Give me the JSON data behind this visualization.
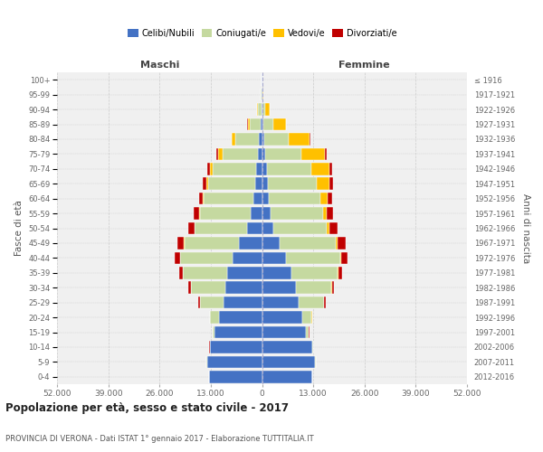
{
  "age_groups": [
    "0-4",
    "5-9",
    "10-14",
    "15-19",
    "20-24",
    "25-29",
    "30-34",
    "35-39",
    "40-44",
    "45-49",
    "50-54",
    "55-59",
    "60-64",
    "65-69",
    "70-74",
    "75-79",
    "80-84",
    "85-89",
    "90-94",
    "95-99",
    "100+"
  ],
  "birth_years": [
    "2012-2016",
    "2007-2011",
    "2002-2006",
    "1997-2001",
    "1992-1996",
    "1987-1991",
    "1982-1986",
    "1977-1981",
    "1972-1976",
    "1967-1971",
    "1962-1966",
    "1957-1961",
    "1952-1956",
    "1947-1951",
    "1942-1946",
    "1937-1941",
    "1932-1936",
    "1927-1931",
    "1922-1926",
    "1917-1921",
    "≤ 1916"
  ],
  "males": {
    "celibi": [
      13500,
      14000,
      13200,
      12000,
      11000,
      9800,
      9200,
      8800,
      7500,
      5800,
      3800,
      2800,
      2200,
      1700,
      1400,
      1100,
      700,
      350,
      200,
      100,
      50
    ],
    "coniugati": [
      20,
      50,
      100,
      500,
      2100,
      6000,
      8800,
      11200,
      13200,
      13800,
      13200,
      13000,
      12500,
      12000,
      11000,
      9000,
      6000,
      2800,
      900,
      200,
      60
    ],
    "vedovi": [
      5,
      10,
      15,
      40,
      80,
      40,
      60,
      80,
      100,
      150,
      200,
      250,
      350,
      500,
      800,
      1100,
      900,
      500,
      200,
      50,
      10
    ],
    "divorziati": [
      5,
      10,
      20,
      50,
      100,
      300,
      550,
      850,
      1300,
      1700,
      1600,
      1200,
      950,
      750,
      650,
      450,
      200,
      80,
      30,
      10,
      5
    ]
  },
  "females": {
    "nubili": [
      12800,
      13500,
      12800,
      11200,
      10200,
      9200,
      8500,
      7500,
      6000,
      4500,
      2900,
      2100,
      1800,
      1500,
      1200,
      900,
      600,
      350,
      200,
      100,
      50
    ],
    "coniugate": [
      20,
      50,
      100,
      650,
      2300,
      6500,
      9100,
      11700,
      13800,
      14200,
      13600,
      13300,
      13000,
      12500,
      11200,
      9200,
      6200,
      2500,
      600,
      100,
      30
    ],
    "vedove": [
      5,
      10,
      20,
      60,
      150,
      80,
      100,
      150,
      200,
      400,
      650,
      1100,
      1900,
      3100,
      4700,
      5800,
      5200,
      3200,
      1100,
      200,
      30
    ],
    "divorziate": [
      5,
      10,
      20,
      50,
      100,
      300,
      520,
      950,
      1600,
      2100,
      2100,
      1600,
      1200,
      1000,
      750,
      450,
      220,
      80,
      30,
      10,
      5
    ]
  },
  "colors": {
    "celibi": "#4472c4",
    "coniugati": "#c5d9a0",
    "vedovi": "#ffc000",
    "divorziati": "#c00000"
  },
  "title": "Popolazione per età, sesso e stato civile - 2017",
  "subtitle": "PROVINCIA DI VERONA - Dati ISTAT 1° gennaio 2017 - Elaborazione TUTTITALIA.IT",
  "label_maschi": "Maschi",
  "label_femmine": "Femmine",
  "ylabel_left": "Fasce di età",
  "ylabel_right": "Anni di nascita",
  "xlim": 52000,
  "xtick_vals": [
    -52000,
    -39000,
    -26000,
    -13000,
    0,
    13000,
    26000,
    39000,
    52000
  ],
  "xtick_labels": [
    "52.000",
    "39.000",
    "26.000",
    "13.000",
    "0",
    "13.000",
    "26.000",
    "39.000",
    "52.000"
  ],
  "bg_color": "#ffffff",
  "plot_bg": "#f0f0f0",
  "grid_color": "#cccccc",
  "bar_height": 0.82
}
